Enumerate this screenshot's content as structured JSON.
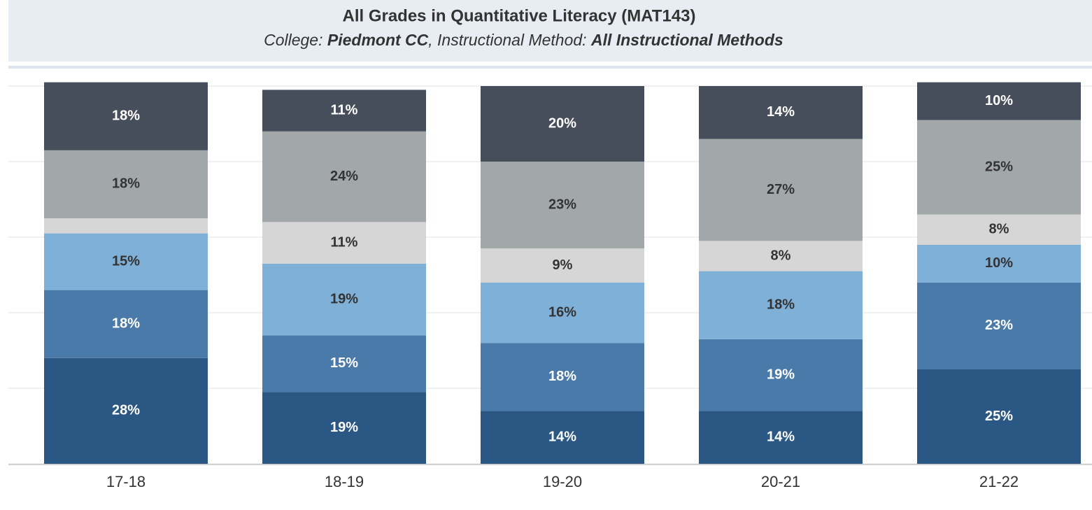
{
  "chart_data": {
    "type": "stacked_bar",
    "title": "All Grades in Quantitative Literacy (MAT143)",
    "subtitle": [
      "College: ",
      "Piedmont CC",
      ", Instructional Method: ",
      "All Instructional Methods"
    ],
    "categories": [
      "17-18",
      "18-19",
      "19-20",
      "20-21",
      "21-22"
    ],
    "series": [
      {
        "color": "#2a5783",
        "label_color": "#ffffff",
        "values": [
          28,
          19,
          14,
          14,
          25
        ],
        "value_labels": [
          "28%",
          "19%",
          "14%",
          "14%",
          "25%"
        ]
      },
      {
        "color": "#4a7aaa",
        "label_color": "#ffffff",
        "values": [
          18,
          15,
          18,
          19,
          23
        ],
        "value_labels": [
          "18%",
          "15%",
          "18%",
          "19%",
          "23%"
        ]
      },
      {
        "color": "#7fb0d8",
        "label_color": "#333333",
        "values": [
          15,
          19,
          16,
          18,
          10
        ],
        "value_labels": [
          "15%",
          "19%",
          "16%",
          "18%",
          "10%"
        ]
      },
      {
        "color": "#d6d6d6",
        "label_color": "#333333",
        "values": [
          4,
          11,
          9,
          8,
          8
        ],
        "value_labels": [
          null,
          "11%",
          "9%",
          "8%",
          "8%"
        ]
      },
      {
        "color": "#a2a7aa",
        "label_color": "#333333",
        "values": [
          18,
          24,
          23,
          27,
          25
        ],
        "value_labels": [
          "18%",
          "24%",
          "23%",
          "27%",
          "25%"
        ]
      },
      {
        "color": "#474e5b",
        "label_color": "#ffffff",
        "values": [
          18,
          11,
          20,
          14,
          10
        ],
        "value_labels": [
          "18%",
          "11%",
          "20%",
          "14%",
          "10%"
        ]
      }
    ],
    "ylim": [
      0,
      100
    ],
    "yticks": [
      0,
      20,
      40,
      60,
      80,
      100
    ],
    "grid": true
  }
}
